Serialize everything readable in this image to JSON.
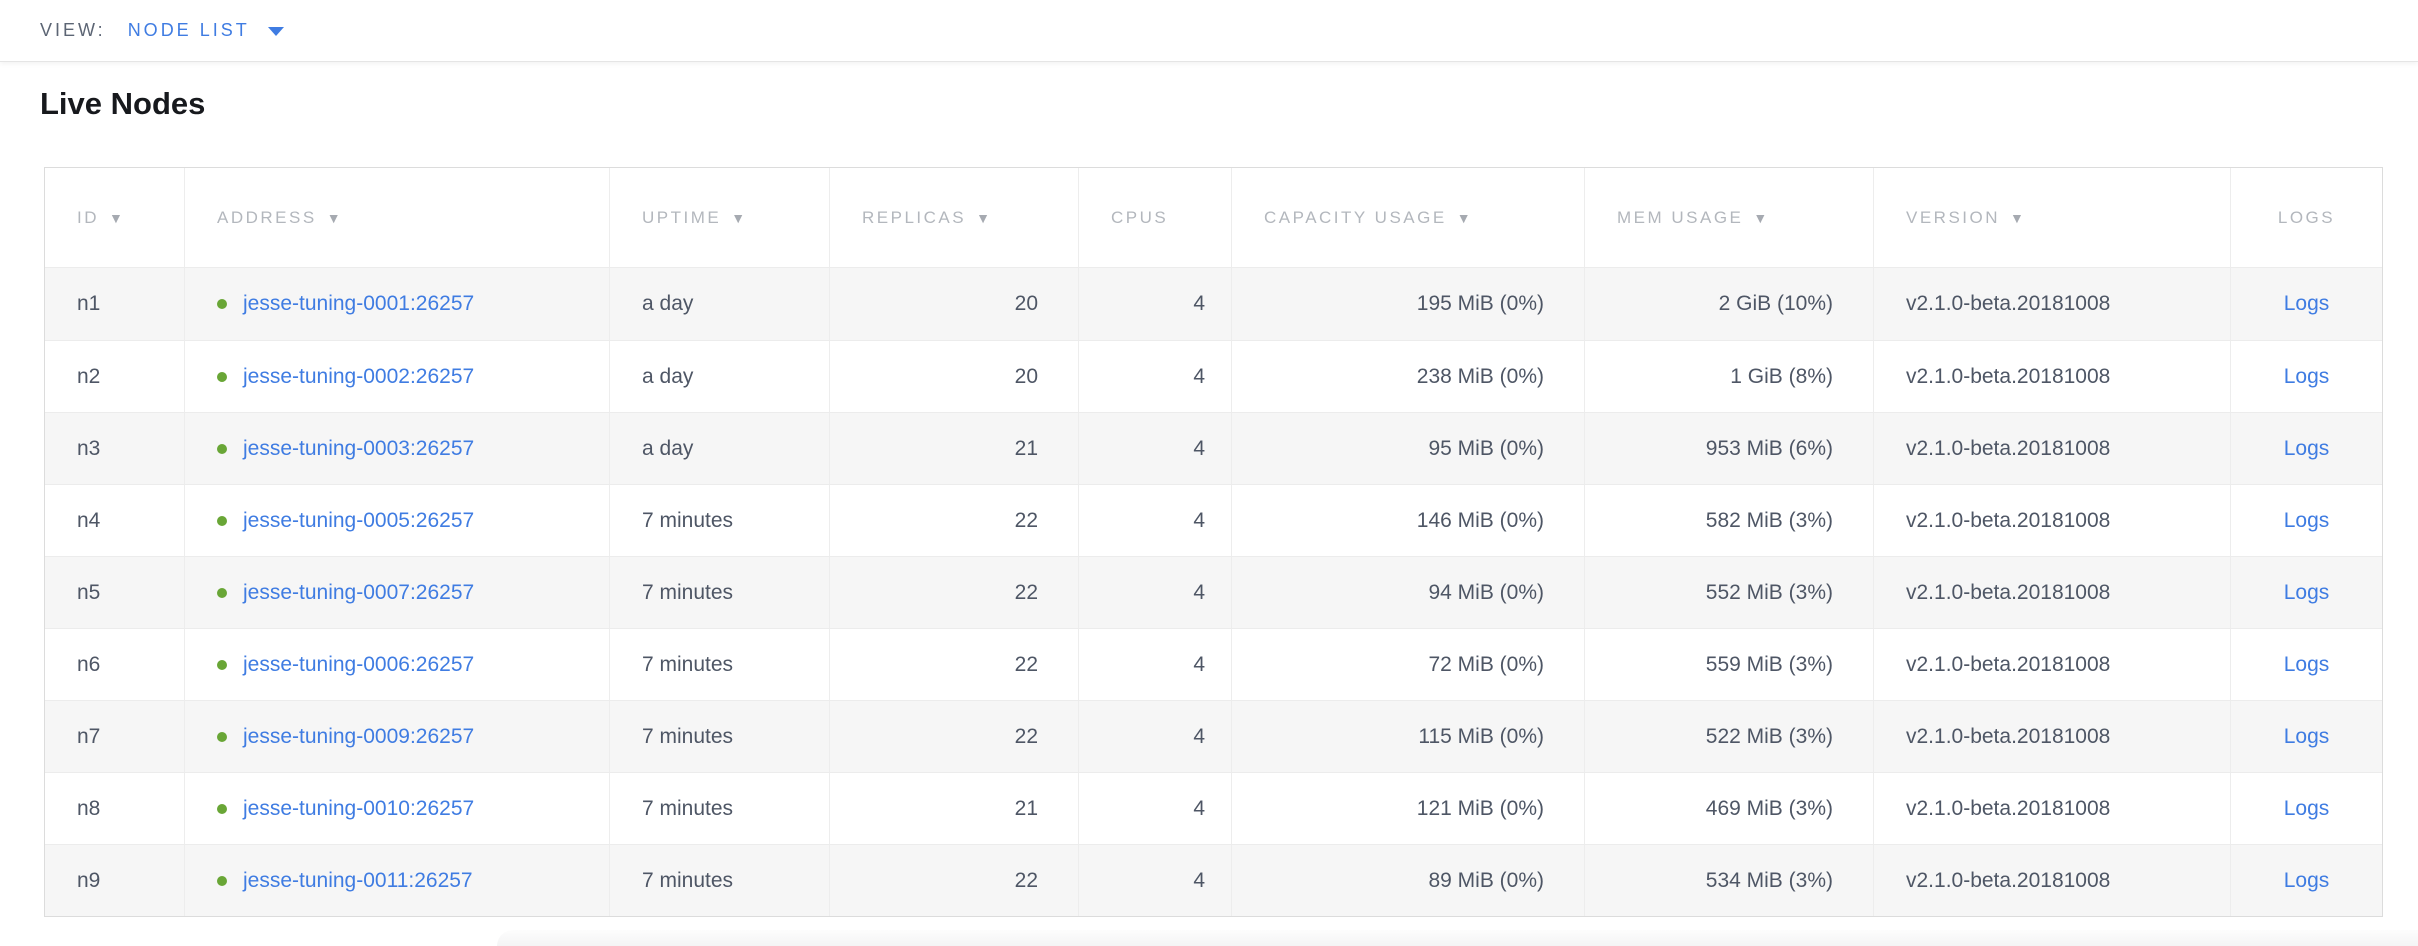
{
  "view_bar": {
    "label": "VIEW:",
    "selected": "NODE LIST"
  },
  "page_title": "Live Nodes",
  "table": {
    "columns": [
      {
        "label": "ID",
        "sort": "▼"
      },
      {
        "label": "ADDRESS",
        "sort": "▼"
      },
      {
        "label": "UPTIME",
        "sort": "▼"
      },
      {
        "label": "REPLICAS",
        "sort": "▼"
      },
      {
        "label": "CPUS",
        "sort": ""
      },
      {
        "label": "CAPACITY USAGE",
        "sort": "▼"
      },
      {
        "label": "MEM USAGE",
        "sort": "▼"
      },
      {
        "label": "VERSION",
        "sort": "▼"
      },
      {
        "label": "LOGS",
        "sort": ""
      }
    ],
    "rows": [
      {
        "id": "n1",
        "status": "live",
        "address": "jesse-tuning-0001:26257",
        "uptime": "a day",
        "replicas": "20",
        "cpus": "4",
        "capacity_usage": "195 MiB (0%)",
        "mem_usage": "2 GiB (10%)",
        "version": "v2.1.0-beta.20181008",
        "logs_label": "Logs"
      },
      {
        "id": "n2",
        "status": "live",
        "address": "jesse-tuning-0002:26257",
        "uptime": "a day",
        "replicas": "20",
        "cpus": "4",
        "capacity_usage": "238 MiB (0%)",
        "mem_usage": "1 GiB (8%)",
        "version": "v2.1.0-beta.20181008",
        "logs_label": "Logs"
      },
      {
        "id": "n3",
        "status": "live",
        "address": "jesse-tuning-0003:26257",
        "uptime": "a day",
        "replicas": "21",
        "cpus": "4",
        "capacity_usage": "95 MiB (0%)",
        "mem_usage": "953 MiB (6%)",
        "version": "v2.1.0-beta.20181008",
        "logs_label": "Logs"
      },
      {
        "id": "n4",
        "status": "live",
        "address": "jesse-tuning-0005:26257",
        "uptime": "7 minutes",
        "replicas": "22",
        "cpus": "4",
        "capacity_usage": "146 MiB (0%)",
        "mem_usage": "582 MiB (3%)",
        "version": "v2.1.0-beta.20181008",
        "logs_label": "Logs"
      },
      {
        "id": "n5",
        "status": "live",
        "address": "jesse-tuning-0007:26257",
        "uptime": "7 minutes",
        "replicas": "22",
        "cpus": "4",
        "capacity_usage": "94 MiB (0%)",
        "mem_usage": "552 MiB (3%)",
        "version": "v2.1.0-beta.20181008",
        "logs_label": "Logs"
      },
      {
        "id": "n6",
        "status": "live",
        "address": "jesse-tuning-0006:26257",
        "uptime": "7 minutes",
        "replicas": "22",
        "cpus": "4",
        "capacity_usage": "72 MiB (0%)",
        "mem_usage": "559 MiB (3%)",
        "version": "v2.1.0-beta.20181008",
        "logs_label": "Logs"
      },
      {
        "id": "n7",
        "status": "live",
        "address": "jesse-tuning-0009:26257",
        "uptime": "7 minutes",
        "replicas": "22",
        "cpus": "4",
        "capacity_usage": "115 MiB (0%)",
        "mem_usage": "522 MiB (3%)",
        "version": "v2.1.0-beta.20181008",
        "logs_label": "Logs"
      },
      {
        "id": "n8",
        "status": "live",
        "address": "jesse-tuning-0010:26257",
        "uptime": "7 minutes",
        "replicas": "21",
        "cpus": "4",
        "capacity_usage": "121 MiB (0%)",
        "mem_usage": "469 MiB (3%)",
        "version": "v2.1.0-beta.20181008",
        "logs_label": "Logs"
      },
      {
        "id": "n9",
        "status": "live",
        "address": "jesse-tuning-0011:26257",
        "uptime": "7 minutes",
        "replicas": "22",
        "cpus": "4",
        "capacity_usage": "89 MiB (0%)",
        "mem_usage": "534 MiB (3%)",
        "version": "v2.1.0-beta.20181008",
        "logs_label": "Logs"
      }
    ]
  },
  "colors": {
    "link_blue": "#3f7ce2",
    "live_green": "#69a636",
    "header_gray": "#b3b7bd",
    "cell_text": "#4e5665"
  }
}
